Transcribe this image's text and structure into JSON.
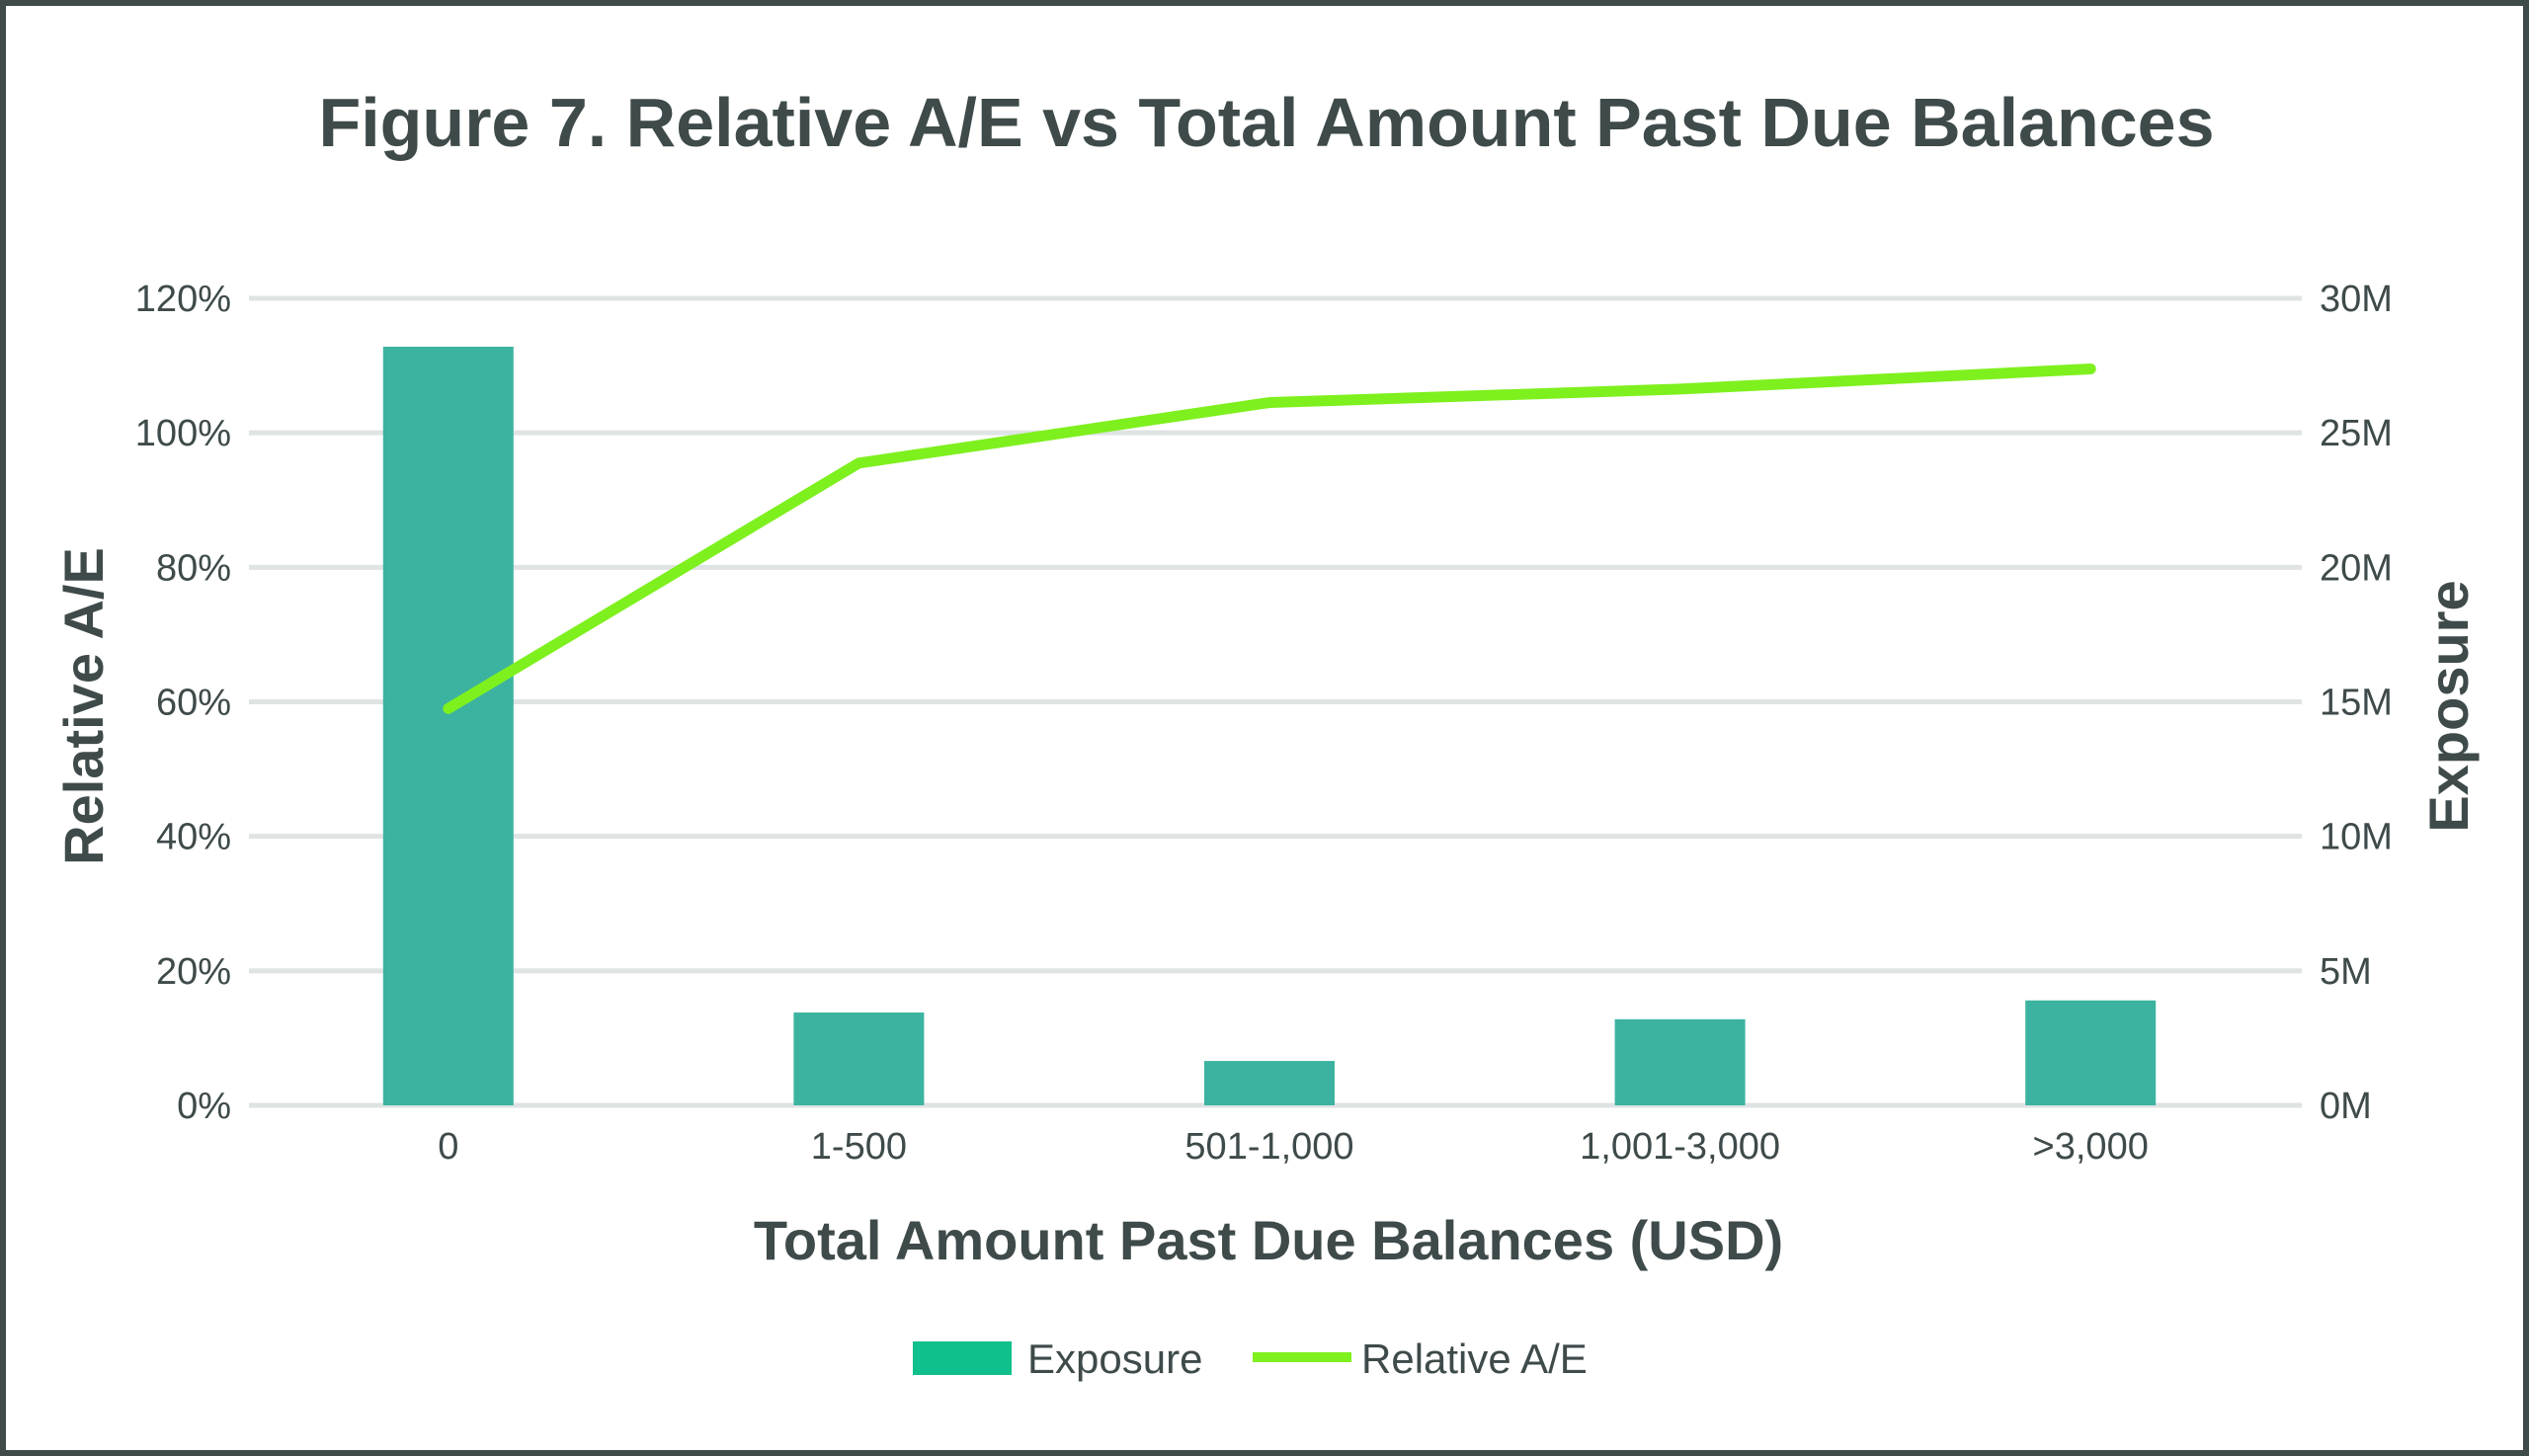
{
  "chart_data": {
    "type": "bar",
    "title": "Figure 7. Relative A/E vs Total Amount Past Due Balances",
    "xlabel": "Total Amount Past Due Balances (USD)",
    "ylabel_left": "Relative A/E",
    "ylabel_right": "Exposure",
    "categories": [
      "0",
      "1-500",
      "501-1,000",
      "1,001-3,000",
      ">3,000"
    ],
    "y_left": {
      "lim": [
        0,
        120
      ],
      "ticks": [
        0,
        20,
        40,
        60,
        80,
        100,
        120
      ],
      "tick_labels": [
        "0%",
        "20%",
        "40%",
        "60%",
        "80%",
        "100%",
        "120%"
      ]
    },
    "y_right": {
      "lim": [
        0,
        30
      ],
      "ticks": [
        0,
        5,
        10,
        15,
        20,
        25,
        30
      ],
      "tick_labels": [
        "0M",
        "5M",
        "10M",
        "15M",
        "20M",
        "25M",
        "30M"
      ]
    },
    "grid": true,
    "legend_position": "bottom",
    "series": [
      {
        "name": "Exposure",
        "kind": "bar",
        "axis": "right",
        "unit": "M",
        "color": "#3cb3a0",
        "legend_color": "#0fbf8c",
        "values": [
          28.2,
          3.45,
          1.65,
          3.2,
          3.9
        ]
      },
      {
        "name": "Relative A/E",
        "kind": "line",
        "axis": "left",
        "unit": "%",
        "color": "#7ef01e",
        "values": [
          59,
          95.5,
          104.5,
          106.5,
          109.5
        ]
      }
    ]
  }
}
